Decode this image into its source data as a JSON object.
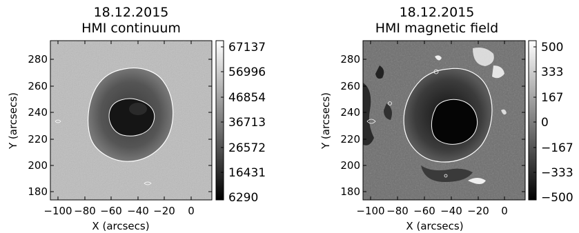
{
  "panels": [
    {
      "date": "18.12.2015",
      "title": "HMI continuum",
      "xlabel": "X (arcsecs)",
      "ylabel": "Y (arcsecs)",
      "xticks": [
        "−100",
        "−80",
        "−60",
        "−40",
        "−20",
        "0"
      ],
      "yticks": [
        "280",
        "260",
        "240",
        "220",
        "200",
        "180"
      ],
      "colorbar_ticks": [
        "67137",
        "56996",
        "46854",
        "36713",
        "26572",
        "16431",
        "6290"
      ]
    },
    {
      "date": "18.12.2015",
      "title": "HMI magnetic field",
      "xlabel": "X (arcsecs)",
      "ylabel": "Y (arcsecs)",
      "xticks": [
        "−100",
        "−80",
        "−60",
        "−40",
        "−20",
        "0"
      ],
      "yticks": [
        "280",
        "260",
        "240",
        "220",
        "200",
        "180"
      ],
      "colorbar_ticks": [
        "500",
        "333",
        "167",
        "0",
        "−167",
        "−333",
        "−500"
      ]
    }
  ]
}
